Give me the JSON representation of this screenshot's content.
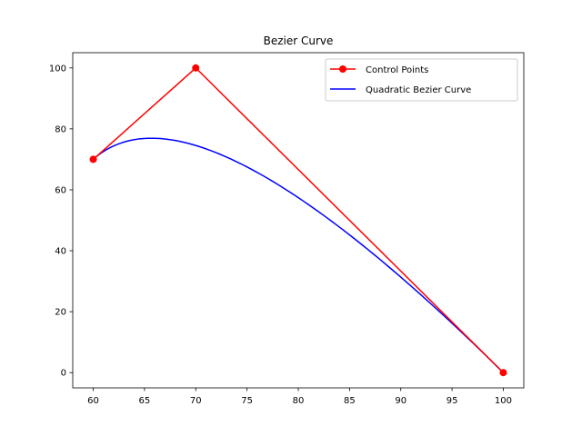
{
  "chart_data": {
    "type": "line",
    "title": "Bezier Curve",
    "xlabel": "",
    "ylabel": "",
    "xlim": [
      58,
      102
    ],
    "ylim": [
      -5,
      105
    ],
    "xticks": [
      60,
      65,
      70,
      75,
      80,
      85,
      90,
      95,
      100
    ],
    "yticks": [
      0,
      20,
      40,
      60,
      80,
      100
    ],
    "grid": false,
    "legend_position": "top-right",
    "series": [
      {
        "name": "Control Points",
        "kind": "line-with-markers",
        "color": "#ff0000",
        "x": [
          60,
          70,
          100
        ],
        "y": [
          70,
          100,
          0
        ]
      },
      {
        "name": "Quadratic Bezier Curve",
        "kind": "line",
        "color": "#0000ff",
        "bezier_control_points": [
          [
            60,
            70
          ],
          [
            70,
            100
          ],
          [
            100,
            0
          ]
        ]
      }
    ]
  }
}
